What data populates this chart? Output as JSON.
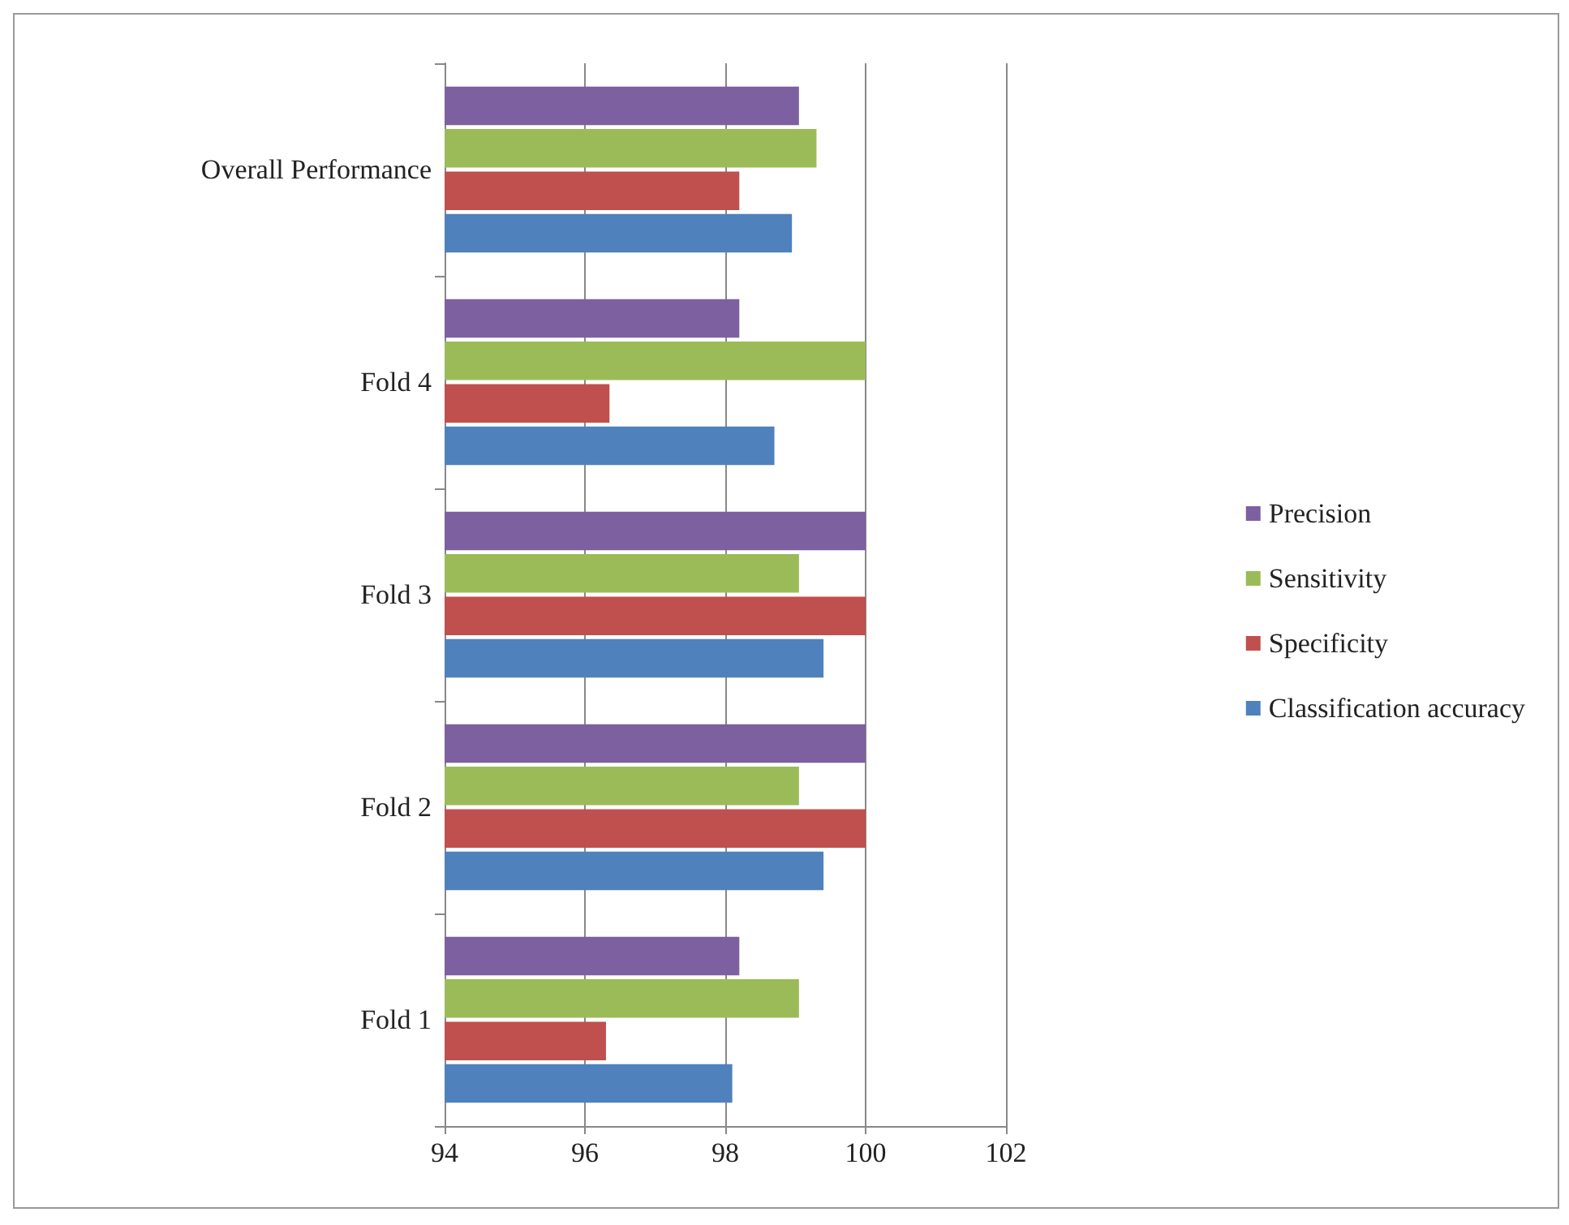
{
  "chart_data": {
    "type": "bar",
    "orientation": "horizontal",
    "categories": [
      "Overall Performance",
      "Fold 4",
      "Fold 3",
      "Fold 2",
      "Fold 1"
    ],
    "series": [
      {
        "name": "Precision",
        "color": "#7d60a0",
        "values": [
          99.05,
          98.2,
          100,
          100,
          98.2
        ]
      },
      {
        "name": "Sensitivity",
        "color": "#9bbb59",
        "values": [
          99.3,
          100,
          99.05,
          99.05,
          99.05
        ]
      },
      {
        "name": "Specificity",
        "color": "#c0504d",
        "values": [
          98.2,
          96.35,
          100,
          100,
          96.3
        ]
      },
      {
        "name": "Classification accuracy",
        "color": "#4f81bd",
        "values": [
          98.95,
          98.7,
          99.4,
          99.4,
          98.1
        ]
      }
    ],
    "xlim": [
      94,
      102
    ],
    "xticks": [
      94,
      96,
      98,
      100,
      102
    ],
    "grid": "x",
    "legend": "right"
  }
}
